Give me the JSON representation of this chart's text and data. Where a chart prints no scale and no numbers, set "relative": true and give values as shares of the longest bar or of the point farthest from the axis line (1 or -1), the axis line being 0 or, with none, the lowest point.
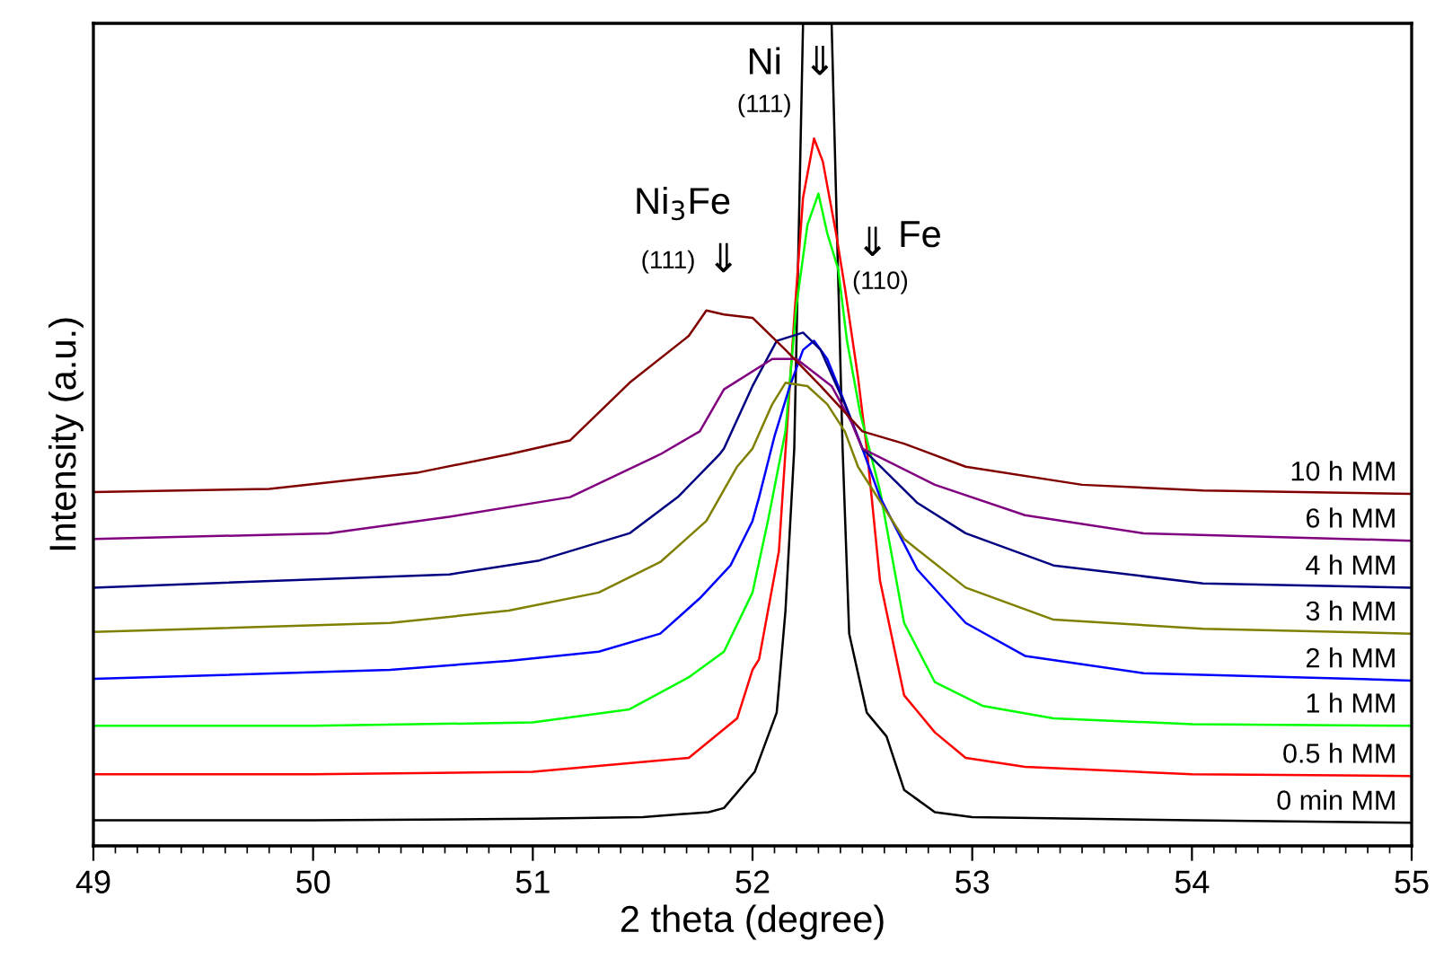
{
  "chart_data": {
    "type": "line",
    "relative": true,
    "xlabel": "2 theta (degree)",
    "ylabel": "Intensity (a.u.)",
    "xlim": [
      49,
      55
    ],
    "xticks": [
      49,
      50,
      51,
      52,
      53,
      54,
      55
    ],
    "legend": false,
    "grid": false,
    "marker": "none",
    "line_style": "solid",
    "annotations": [
      "Ni",
      "(111)",
      "⇓",
      "Ni$_{3}$Fe",
      "(111)",
      "⇓",
      "⇓",
      "Fe",
      "(110)"
    ],
    "series": [
      {
        "name": "0 min MM",
        "color": "#000000",
        "x": [
          49,
          50,
          51,
          51.5,
          51.8,
          51.87,
          52.01,
          52.11,
          52.15,
          52.19,
          52.23,
          52.36,
          52.41,
          52.44,
          52.52,
          52.61,
          52.69,
          52.83,
          53.0,
          54,
          55
        ],
        "values": [
          0.031,
          0.031,
          0.033,
          0.035,
          0.041,
          0.046,
          0.09,
          0.162,
          0.286,
          0.483,
          1.0,
          1.0,
          0.483,
          0.258,
          0.162,
          0.133,
          0.068,
          0.041,
          0.035,
          0.031,
          0.028
        ]
      },
      {
        "name": "0.5 h MM",
        "color": "#ff0000",
        "x": [
          49,
          50,
          51,
          51.71,
          51.93,
          52.0,
          52.03,
          52.12,
          52.19,
          52.23,
          52.28,
          52.32,
          52.38,
          52.42,
          52.48,
          52.52,
          52.58,
          52.69,
          52.83,
          52.97,
          53.24,
          54,
          55
        ],
        "values": [
          0.087,
          0.087,
          0.09,
          0.107,
          0.155,
          0.214,
          0.227,
          0.358,
          0.642,
          0.788,
          0.86,
          0.832,
          0.745,
          0.679,
          0.57,
          0.483,
          0.323,
          0.183,
          0.138,
          0.107,
          0.096,
          0.087,
          0.085
        ]
      },
      {
        "name": "1 h MM",
        "color": "#00ff00",
        "x": [
          49,
          50,
          51,
          51.44,
          51.71,
          51.87,
          52.0,
          52.07,
          52.15,
          52.2,
          52.25,
          52.3,
          52.34,
          52.39,
          52.43,
          52.49,
          52.58,
          52.69,
          52.83,
          53.05,
          53.37,
          54,
          55
        ],
        "values": [
          0.146,
          0.146,
          0.15,
          0.166,
          0.205,
          0.236,
          0.308,
          0.395,
          0.504,
          0.657,
          0.755,
          0.793,
          0.745,
          0.701,
          0.614,
          0.526,
          0.432,
          0.271,
          0.199,
          0.17,
          0.155,
          0.148,
          0.146
        ]
      },
      {
        "name": "2 h MM",
        "color": "#0000ff",
        "x": [
          49,
          50.35,
          50.89,
          51.3,
          51.58,
          51.76,
          51.9,
          52.0,
          52.03,
          52.1,
          52.17,
          52.23,
          52.28,
          52.34,
          52.39,
          52.5,
          52.58,
          52.75,
          52.97,
          53.24,
          53.78,
          55
        ],
        "values": [
          0.203,
          0.214,
          0.225,
          0.236,
          0.258,
          0.301,
          0.341,
          0.395,
          0.424,
          0.498,
          0.559,
          0.603,
          0.614,
          0.592,
          0.559,
          0.483,
          0.424,
          0.336,
          0.271,
          0.231,
          0.21,
          0.201
        ]
      },
      {
        "name": "3 h MM",
        "color": "#808000",
        "x": [
          49,
          50.35,
          50.89,
          51.3,
          51.58,
          51.79,
          51.93,
          52.0,
          52.09,
          52.15,
          52.25,
          52.34,
          52.42,
          52.48,
          52.69,
          52.97,
          53.37,
          54.05,
          55
        ],
        "values": [
          0.26,
          0.271,
          0.286,
          0.308,
          0.345,
          0.395,
          0.461,
          0.483,
          0.537,
          0.563,
          0.559,
          0.537,
          0.504,
          0.461,
          0.373,
          0.314,
          0.275,
          0.264,
          0.258
        ]
      },
      {
        "name": "4 h MM",
        "color": "#000080",
        "x": [
          49,
          50.62,
          51.03,
          51.44,
          51.66,
          51.85,
          51.87,
          52.0,
          52.11,
          52.23,
          52.31,
          52.42,
          52.5,
          52.75,
          52.97,
          53.37,
          54.05,
          55
        ],
        "values": [
          0.314,
          0.33,
          0.347,
          0.38,
          0.424,
          0.476,
          0.483,
          0.559,
          0.614,
          0.624,
          0.603,
          0.537,
          0.483,
          0.417,
          0.38,
          0.341,
          0.319,
          0.314
        ]
      },
      {
        "name": "6 h MM",
        "color": "#800080",
        "x": [
          49,
          50.07,
          50.62,
          51.17,
          51.58,
          51.76,
          51.87,
          52.09,
          52.2,
          52.36,
          52.45,
          52.5,
          52.83,
          53.24,
          53.78,
          55
        ],
        "values": [
          0.373,
          0.38,
          0.4,
          0.424,
          0.476,
          0.504,
          0.555,
          0.592,
          0.592,
          0.559,
          0.515,
          0.483,
          0.439,
          0.402,
          0.38,
          0.371
        ]
      },
      {
        "name": "10 h MM",
        "color": "#800000",
        "x": [
          49,
          49.8,
          50.48,
          50.89,
          51.17,
          51.44,
          51.71,
          51.79,
          51.87,
          52.0,
          52.15,
          52.31,
          52.5,
          52.69,
          52.97,
          53.5,
          54.05,
          55
        ],
        "values": [
          0.43,
          0.434,
          0.454,
          0.476,
          0.493,
          0.563,
          0.62,
          0.651,
          0.646,
          0.642,
          0.603,
          0.559,
          0.504,
          0.489,
          0.461,
          0.439,
          0.432,
          0.428
        ]
      }
    ]
  }
}
